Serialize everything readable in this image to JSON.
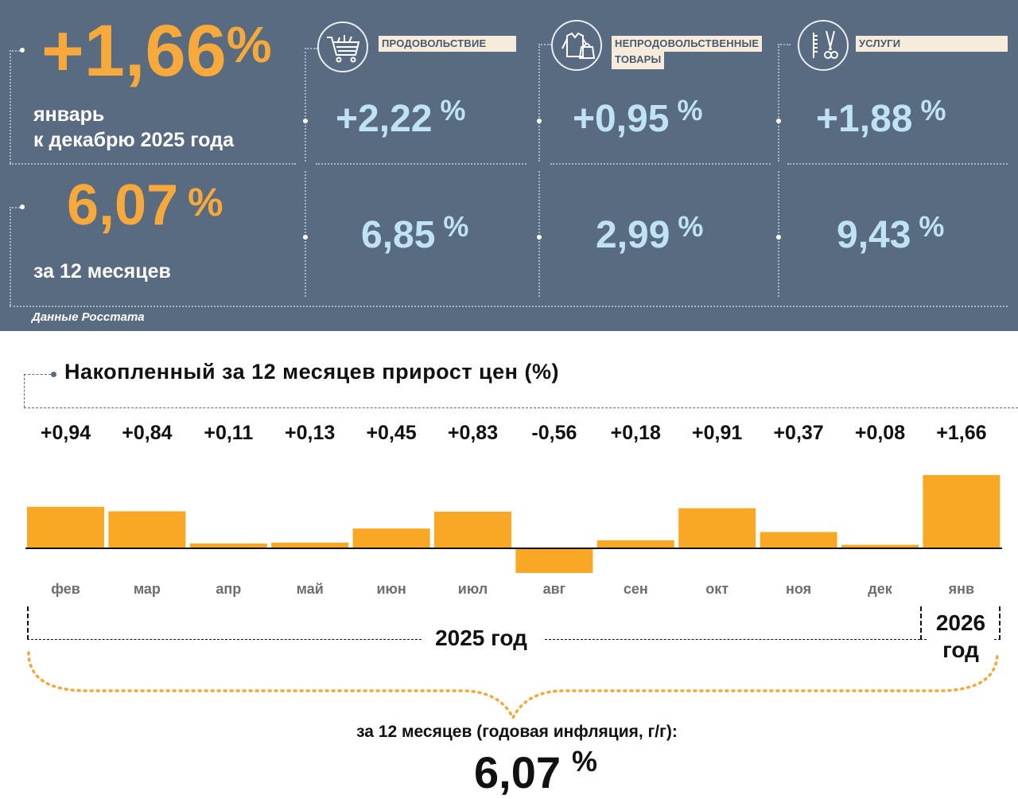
{
  "summary": {
    "monthly_value": "+1,66",
    "monthly_pct": "%",
    "monthly_caption_1": "январь",
    "monthly_caption_2": "к декабрю 2025 года",
    "annual_value": "6,07",
    "annual_pct": "%",
    "annual_caption": "за 12 месяцев",
    "source": "Данные Росстата"
  },
  "categories": [
    {
      "label": "ПРОДОВОЛЬСТВИЕ",
      "monthly": "+2,22",
      "annual": "6,85",
      "pct": "%",
      "icon": "shopping-cart-icon"
    },
    {
      "label_1": "НЕПРОДОВОЛЬСТВЕННЫЕ",
      "label_2": "ТОВАРЫ",
      "monthly": "+0,95",
      "annual": "2,99",
      "pct": "%",
      "icon": "clothing-bag-icon"
    },
    {
      "label": "УСЛУГИ",
      "monthly": "+1,88",
      "annual": "9,43",
      "pct": "%",
      "icon": "scissors-comb-icon"
    }
  ],
  "chart_data": {
    "type": "bar",
    "title": "Накопленный за 12 месяцев прирост цен (%)",
    "categories": [
      "фев",
      "мар",
      "апр",
      "май",
      "июн",
      "июл",
      "авг",
      "сен",
      "окт",
      "ноя",
      "дек",
      "янв"
    ],
    "values": [
      0.94,
      0.84,
      0.11,
      0.13,
      0.45,
      0.83,
      -0.56,
      0.18,
      0.91,
      0.37,
      0.08,
      1.66
    ],
    "value_labels": [
      "+0,94",
      "+0,84",
      "+0,11",
      "+0,13",
      "+0,45",
      "+0,83",
      "-0,56",
      "+0,18",
      "+0,91",
      "+0,37",
      "+0,08",
      "+1,66"
    ],
    "bar_color": "#f9a825",
    "xlabel": "",
    "ylabel": "",
    "year_2025": "2025 год",
    "year_2026_line1": "2026",
    "year_2026_line2": "год"
  },
  "footer": {
    "caption": "за 12 месяцев (годовая инфляция, г/г):",
    "value": "6,07",
    "pct": "%"
  },
  "colors": {
    "panel": "#586b80",
    "orange": "#f7a93b",
    "light_blue": "#bfe3f4",
    "tag_bg": "#f7ecdc"
  }
}
